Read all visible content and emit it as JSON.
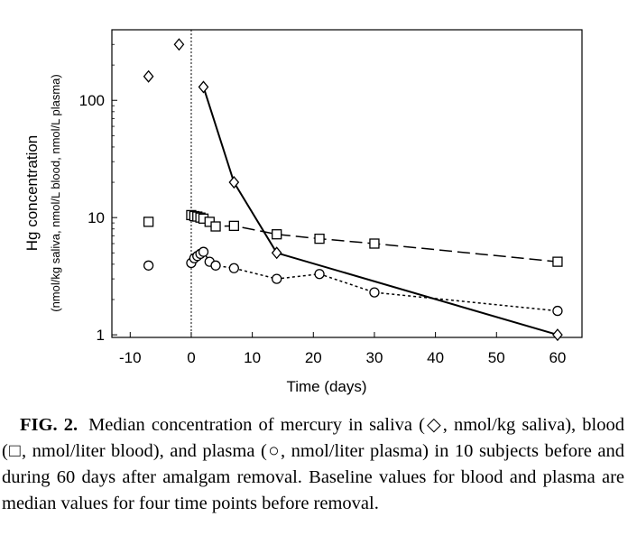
{
  "chart_data": {
    "type": "line",
    "yscale": "log",
    "xlabel": "Time (days)",
    "ylabel": "Hg concentration",
    "ylabel_sub": "(nmol/kg saliva, nmol/L blood, nmol/L plasma)",
    "xlim": [
      -13,
      64
    ],
    "ylim": [
      0.95,
      400
    ],
    "xticks": [
      -10,
      0,
      10,
      20,
      30,
      40,
      50,
      60
    ],
    "xtick_labels": [
      "-10",
      "0",
      "10",
      "20",
      "30",
      "40",
      "50",
      "60"
    ],
    "yticks": [
      1,
      10,
      100
    ],
    "ytick_labels": [
      "1",
      "10",
      "100"
    ],
    "vline_x": 0,
    "series": [
      {
        "name": "saliva",
        "marker": "diamond",
        "line_style": "solid",
        "baseline_points": [
          {
            "x": -7,
            "y": 160
          },
          {
            "x": -2,
            "y": 300
          }
        ],
        "points": [
          {
            "x": 2,
            "y": 130
          },
          {
            "x": 7,
            "y": 20
          },
          {
            "x": 14,
            "y": 5
          },
          {
            "x": 60,
            "y": 1
          }
        ]
      },
      {
        "name": "blood",
        "marker": "square",
        "line_style": "dashed",
        "baseline_points": [
          {
            "x": -7,
            "y": 9.2
          }
        ],
        "points": [
          {
            "x": 0,
            "y": 10.5
          },
          {
            "x": 0.5,
            "y": 10.3
          },
          {
            "x": 1,
            "y": 10.2
          },
          {
            "x": 1.5,
            "y": 10
          },
          {
            "x": 2,
            "y": 9.8
          },
          {
            "x": 3,
            "y": 9.2
          },
          {
            "x": 4,
            "y": 8.4
          },
          {
            "x": 7,
            "y": 8.5
          },
          {
            "x": 14,
            "y": 7.2
          },
          {
            "x": 21,
            "y": 6.6
          },
          {
            "x": 30,
            "y": 6
          },
          {
            "x": 60,
            "y": 4.2
          }
        ]
      },
      {
        "name": "plasma",
        "marker": "circle",
        "line_style": "dotted",
        "baseline_points": [
          {
            "x": -7,
            "y": 3.9
          }
        ],
        "points": [
          {
            "x": 0,
            "y": 4.1
          },
          {
            "x": 0.5,
            "y": 4.5
          },
          {
            "x": 1,
            "y": 4.7
          },
          {
            "x": 1.5,
            "y": 4.9
          },
          {
            "x": 2,
            "y": 5.1
          },
          {
            "x": 3,
            "y": 4.2
          },
          {
            "x": 4,
            "y": 3.9
          },
          {
            "x": 7,
            "y": 3.7
          },
          {
            "x": 14,
            "y": 3
          },
          {
            "x": 21,
            "y": 3.3
          },
          {
            "x": 30,
            "y": 2.3
          },
          {
            "x": 60,
            "y": 1.6
          }
        ]
      }
    ]
  },
  "caption": {
    "label": "FIG. 2.",
    "text": "Median concentration of mercury in saliva (◇, nmol/kg saliva), blood (□, nmol/liter blood), and plasma (○, nmol/liter plasma) in 10 subjects before and during 60 days after amalgam removal. Baseline values for blood and plasma are median values for four time points before removal."
  }
}
